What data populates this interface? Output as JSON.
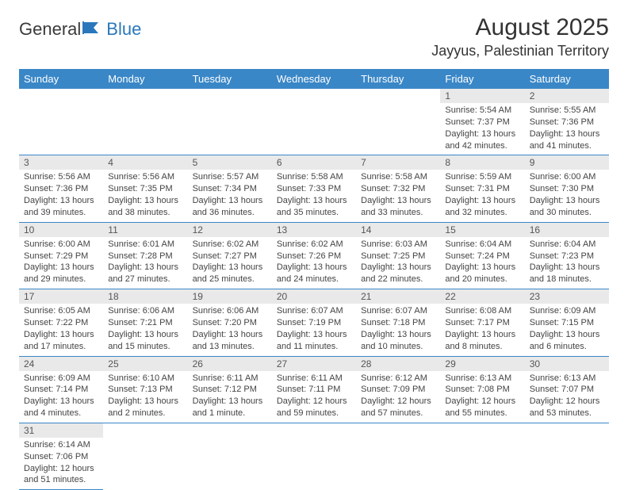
{
  "logo": {
    "part1": "General",
    "part2": "Blue"
  },
  "title": "August 2025",
  "location": "Jayyus, Palestinian Territory",
  "colors": {
    "header_bg": "#3a87c7",
    "header_text": "#ffffff",
    "daynum_bg": "#e9e9e9",
    "row_divider": "#3a87c7",
    "logo_blue": "#2a78bb",
    "body_text": "#444444"
  },
  "weekdays": [
    "Sunday",
    "Monday",
    "Tuesday",
    "Wednesday",
    "Thursday",
    "Friday",
    "Saturday"
  ],
  "days": {
    "1": {
      "sunrise": "5:54 AM",
      "sunset": "7:37 PM",
      "daylight": "13 hours and 42 minutes."
    },
    "2": {
      "sunrise": "5:55 AM",
      "sunset": "7:36 PM",
      "daylight": "13 hours and 41 minutes."
    },
    "3": {
      "sunrise": "5:56 AM",
      "sunset": "7:36 PM",
      "daylight": "13 hours and 39 minutes."
    },
    "4": {
      "sunrise": "5:56 AM",
      "sunset": "7:35 PM",
      "daylight": "13 hours and 38 minutes."
    },
    "5": {
      "sunrise": "5:57 AM",
      "sunset": "7:34 PM",
      "daylight": "13 hours and 36 minutes."
    },
    "6": {
      "sunrise": "5:58 AM",
      "sunset": "7:33 PM",
      "daylight": "13 hours and 35 minutes."
    },
    "7": {
      "sunrise": "5:58 AM",
      "sunset": "7:32 PM",
      "daylight": "13 hours and 33 minutes."
    },
    "8": {
      "sunrise": "5:59 AM",
      "sunset": "7:31 PM",
      "daylight": "13 hours and 32 minutes."
    },
    "9": {
      "sunrise": "6:00 AM",
      "sunset": "7:30 PM",
      "daylight": "13 hours and 30 minutes."
    },
    "10": {
      "sunrise": "6:00 AM",
      "sunset": "7:29 PM",
      "daylight": "13 hours and 29 minutes."
    },
    "11": {
      "sunrise": "6:01 AM",
      "sunset": "7:28 PM",
      "daylight": "13 hours and 27 minutes."
    },
    "12": {
      "sunrise": "6:02 AM",
      "sunset": "7:27 PM",
      "daylight": "13 hours and 25 minutes."
    },
    "13": {
      "sunrise": "6:02 AM",
      "sunset": "7:26 PM",
      "daylight": "13 hours and 24 minutes."
    },
    "14": {
      "sunrise": "6:03 AM",
      "sunset": "7:25 PM",
      "daylight": "13 hours and 22 minutes."
    },
    "15": {
      "sunrise": "6:04 AM",
      "sunset": "7:24 PM",
      "daylight": "13 hours and 20 minutes."
    },
    "16": {
      "sunrise": "6:04 AM",
      "sunset": "7:23 PM",
      "daylight": "13 hours and 18 minutes."
    },
    "17": {
      "sunrise": "6:05 AM",
      "sunset": "7:22 PM",
      "daylight": "13 hours and 17 minutes."
    },
    "18": {
      "sunrise": "6:06 AM",
      "sunset": "7:21 PM",
      "daylight": "13 hours and 15 minutes."
    },
    "19": {
      "sunrise": "6:06 AM",
      "sunset": "7:20 PM",
      "daylight": "13 hours and 13 minutes."
    },
    "20": {
      "sunrise": "6:07 AM",
      "sunset": "7:19 PM",
      "daylight": "13 hours and 11 minutes."
    },
    "21": {
      "sunrise": "6:07 AM",
      "sunset": "7:18 PM",
      "daylight": "13 hours and 10 minutes."
    },
    "22": {
      "sunrise": "6:08 AM",
      "sunset": "7:17 PM",
      "daylight": "13 hours and 8 minutes."
    },
    "23": {
      "sunrise": "6:09 AM",
      "sunset": "7:15 PM",
      "daylight": "13 hours and 6 minutes."
    },
    "24": {
      "sunrise": "6:09 AM",
      "sunset": "7:14 PM",
      "daylight": "13 hours and 4 minutes."
    },
    "25": {
      "sunrise": "6:10 AM",
      "sunset": "7:13 PM",
      "daylight": "13 hours and 2 minutes."
    },
    "26": {
      "sunrise": "6:11 AM",
      "sunset": "7:12 PM",
      "daylight": "13 hours and 1 minute."
    },
    "27": {
      "sunrise": "6:11 AM",
      "sunset": "7:11 PM",
      "daylight": "12 hours and 59 minutes."
    },
    "28": {
      "sunrise": "6:12 AM",
      "sunset": "7:09 PM",
      "daylight": "12 hours and 57 minutes."
    },
    "29": {
      "sunrise": "6:13 AM",
      "sunset": "7:08 PM",
      "daylight": "12 hours and 55 minutes."
    },
    "30": {
      "sunrise": "6:13 AM",
      "sunset": "7:07 PM",
      "daylight": "12 hours and 53 minutes."
    },
    "31": {
      "sunrise": "6:14 AM",
      "sunset": "7:06 PM",
      "daylight": "12 hours and 51 minutes."
    }
  },
  "labels": {
    "sunrise": "Sunrise: ",
    "sunset": "Sunset: ",
    "daylight": "Daylight: "
  },
  "grid": [
    [
      0,
      0,
      0,
      0,
      0,
      1,
      2
    ],
    [
      3,
      4,
      5,
      6,
      7,
      8,
      9
    ],
    [
      10,
      11,
      12,
      13,
      14,
      15,
      16
    ],
    [
      17,
      18,
      19,
      20,
      21,
      22,
      23
    ],
    [
      24,
      25,
      26,
      27,
      28,
      29,
      30
    ],
    [
      31,
      0,
      0,
      0,
      0,
      0,
      0
    ]
  ]
}
